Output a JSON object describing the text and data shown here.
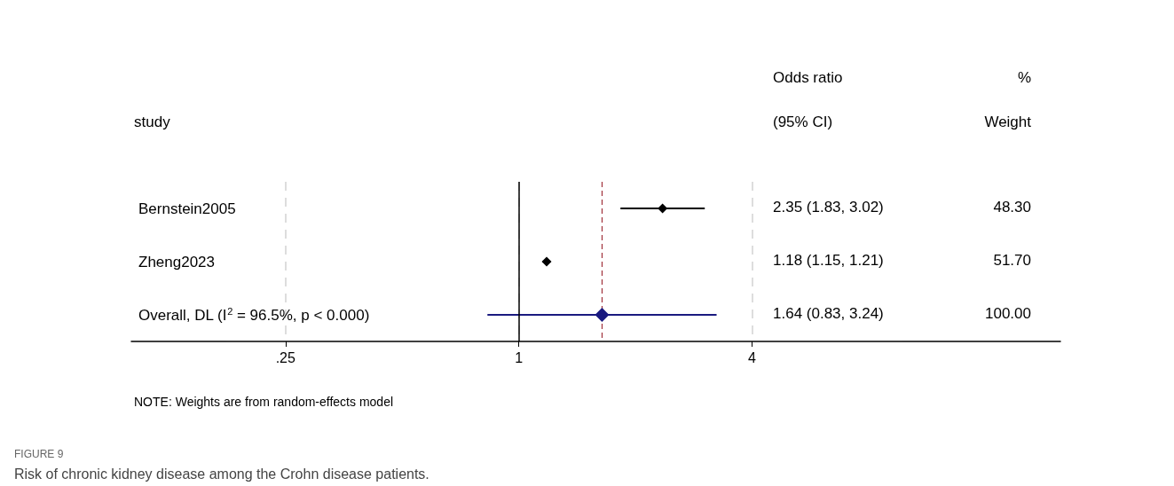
{
  "chart_data": {
    "type": "scatter",
    "orientation": "horizontal",
    "ylabel": "study",
    "categories": [
      "Bernstein2005",
      "Zheng2023",
      "Overall, DL (I$^{2}$ = 96.5%, p < 0.000)"
    ],
    "series": [
      {
        "type": "scatter",
        "color": "#000000",
        "marker": "diamond",
        "values": [
          2.35,
          1.18,
          null
        ],
        "errors": [
          [
            1.83,
            3.02
          ],
          [
            1.15,
            1.21
          ],
          null
        ]
      },
      {
        "type": "scatter",
        "color": "#1a1a80",
        "marker": "diamond",
        "values": [
          null,
          null,
          1.64
        ],
        "errors": [
          null,
          null,
          [
            0.83,
            3.24
          ]
        ]
      }
    ],
    "log": "x",
    "xlim": [
      0.1,
      25
    ],
    "xticks": [
      {
        "value": 0.25,
        "label": ".25"
      },
      1,
      4
    ],
    "grid": "x",
    "ref_lines": [
      {
        "axis": "x",
        "value": 1,
        "color": "#000000",
        "line_style": "solid"
      },
      {
        "axis": "x",
        "value": 1.64,
        "color": "#a0303a",
        "line_style": "dashed"
      }
    ],
    "annotations": [
      "Odds ratio",
      "(95% CI)",
      "%",
      "Weight",
      "2.35 (1.83, 3.02)",
      "48.30",
      "1.18 (1.15, 1.21)",
      "51.70",
      "1.64 (0.83, 3.24)",
      "100.00",
      "NOTE: Weights are from random-effects model",
      "FIGURE 9",
      "Risk of chronic kidney disease among the Crohn disease patients."
    ]
  }
}
